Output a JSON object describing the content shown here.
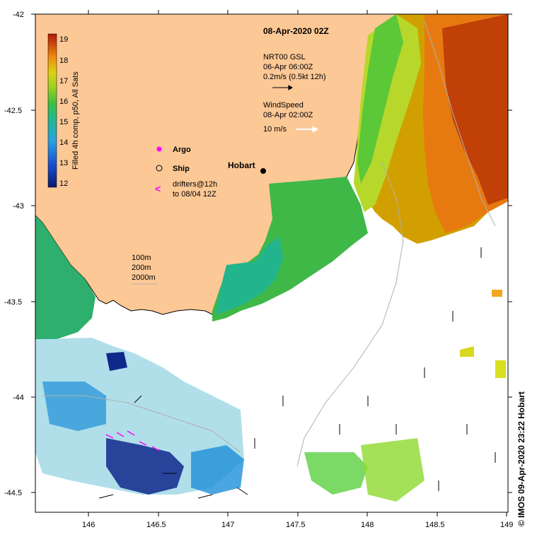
{
  "map": {
    "title": "08-Apr-2020 02Z",
    "colorbar": {
      "label": "Filled 4h comp, p50, All Sats",
      "ticks": [
        "19",
        "18",
        "17",
        "16",
        "15",
        "14",
        "13",
        "12"
      ]
    },
    "current_legend": [
      "NRT00 GSL",
      "06-Apr 06:00Z",
      "0.2m/s (0.5kt 12h)"
    ],
    "wind_legend": [
      "WindSpeed",
      "08-Apr 02:00Z",
      "10 m/s"
    ],
    "markers": {
      "argo": "Argo",
      "ship": "Ship",
      "drifters": [
        "drifters@12h",
        "to 08/04 12Z"
      ]
    },
    "city": "Hobart",
    "depth_legend": [
      "100m",
      "200m",
      "2000m"
    ],
    "lat_ticks": [
      "-42",
      "-42.5",
      "-43",
      "-43.5",
      "-44",
      "-44.5"
    ],
    "lon_ticks": [
      "146",
      "146.5",
      "147",
      "147.5",
      "148",
      "148.5",
      "149"
    ],
    "credit": "© IMOS 09-Apr-2020 23:22 Hobart"
  }
}
